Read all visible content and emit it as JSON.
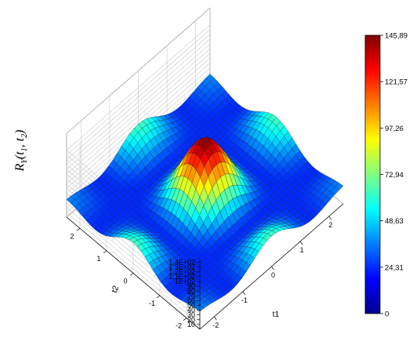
{
  "chart_data": {
    "type": "surface",
    "title": "",
    "zlabel": "R_Y(t_1, t_2)",
    "zlabel_parts": {
      "main": "R",
      "sub_y": "Y",
      "open": "(",
      "t": "t",
      "sub_1": "1",
      "comma": ", ",
      "sub_2": "2",
      "close": ")"
    },
    "xlabel": "t1",
    "ylabel": "t2",
    "xlim": [
      -2.5,
      2.5
    ],
    "ylim": [
      -2.5,
      2.5
    ],
    "zlim": [
      0,
      145.89
    ],
    "x_ticks": [
      "-2",
      "-1",
      "0",
      "1",
      "2"
    ],
    "y_ticks": [
      "-2",
      "-1",
      "0",
      "1",
      "2"
    ],
    "z_ticks": [
      "10",
      "20",
      "30",
      "40",
      "50",
      "60",
      "70",
      "80",
      "90",
      "1E+02",
      "1,1E+02",
      "1,2E+02",
      "1,3E+02",
      "1,4E+02"
    ],
    "peak_value": 145.89,
    "colormap": "jet",
    "colorbar_ticks": [
      "145,89",
      "121,57",
      "97,26",
      "72,94",
      "48,63",
      "24,31",
      "0"
    ],
    "colorbar_values": [
      145.89,
      121.57,
      97.26,
      72.94,
      48.63,
      24.31,
      0
    ],
    "grid": true,
    "colorbar_position": "right"
  }
}
